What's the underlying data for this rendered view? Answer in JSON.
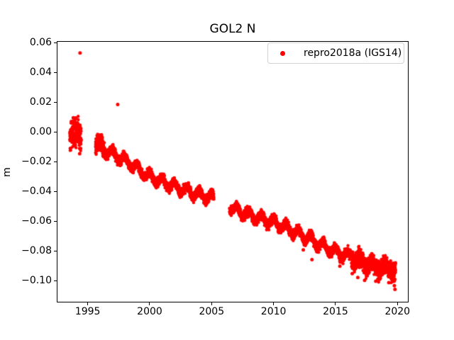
{
  "figure": {
    "title": "GOL2 N",
    "background": "#ffffff"
  },
  "legend": {
    "label": "repro2018a (IGS14)",
    "marker_color": "#ff0000",
    "position": "upper right"
  },
  "chart_data": {
    "type": "scatter",
    "title": "GOL2 N",
    "xlabel": "",
    "ylabel": "m",
    "xlim": [
      1992.5,
      2020.9
    ],
    "ylim": [
      -0.1143,
      0.061
    ],
    "grid": false,
    "xticks": [
      {
        "value": 1995,
        "label": "1995"
      },
      {
        "value": 2000,
        "label": "2000"
      },
      {
        "value": 2005,
        "label": "2005"
      },
      {
        "value": 2010,
        "label": "2010"
      },
      {
        "value": 2015,
        "label": "2015"
      },
      {
        "value": 2020,
        "label": "2020"
      }
    ],
    "yticks": [
      {
        "value": 0.06,
        "label": "0.06"
      },
      {
        "value": 0.04,
        "label": "0.04"
      },
      {
        "value": 0.02,
        "label": "0.02"
      },
      {
        "value": 0.0,
        "label": "0.00"
      },
      {
        "value": -0.02,
        "label": "−0.02"
      },
      {
        "value": -0.04,
        "label": "−0.04"
      },
      {
        "value": -0.06,
        "label": "−0.06"
      },
      {
        "value": -0.08,
        "label": "−0.08"
      },
      {
        "value": -0.1,
        "label": "−0.10"
      }
    ],
    "series": [
      {
        "name": "repro2018a (IGS14)",
        "color": "#ff0000",
        "marker": "dot",
        "marker_radius_px": 2.2,
        "sample_step_years": 0.004,
        "annual_amplitude_m": 0.0028,
        "annual_peak_phase": 0.0,
        "noise_sigma_m": 0.0015,
        "random_seed": 42,
        "segments": [
          {
            "name": "initial-cluster-1993-1994",
            "t_start": 1993.55,
            "t_end": 1994.48,
            "noise_sigma_m": 0.0045,
            "clip": [
              -0.0125,
              0.0105
            ],
            "trend_anchors": [
              [
                1993.55,
                -0.001
              ],
              [
                1994.48,
                -0.002
              ]
            ]
          },
          {
            "name": "band-1995-2005",
            "t_start": 1995.63,
            "t_end": 2005.18,
            "extra_noise_before": 1996.35,
            "extra_noise_sigma_m": 0.0028,
            "trend_anchors": [
              [
                1995.63,
                -0.008
              ],
              [
                1997,
                -0.0145
              ],
              [
                1998,
                -0.019
              ],
              [
                2000,
                -0.03
              ],
              [
                2002,
                -0.0365
              ],
              [
                2004,
                -0.042
              ],
              [
                2005.18,
                -0.0445
              ]
            ]
          },
          {
            "name": "band-2006-2019",
            "t_start": 2006.45,
            "t_end": 2019.85,
            "late_noise_after": 2016.3,
            "late_noise_sigma_m": 0.003,
            "trend_anchors": [
              [
                2006.45,
                -0.0505
              ],
              [
                2008,
                -0.0555
              ],
              [
                2010,
                -0.0605
              ],
              [
                2012,
                -0.068
              ],
              [
                2014,
                -0.0765
              ],
              [
                2015,
                -0.0805
              ],
              [
                2016,
                -0.083
              ],
              [
                2017,
                -0.0865
              ],
              [
                2018,
                -0.0895
              ],
              [
                2019,
                -0.0915
              ],
              [
                2019.85,
                -0.093
              ]
            ]
          }
        ],
        "outliers": [
          [
            1994.38,
            0.053
          ],
          [
            1997.42,
            0.0185
          ]
        ],
        "stray_points": [
          [
            1994.35,
            -0.0145
          ],
          [
            2012.4,
            -0.079
          ],
          [
            2013.1,
            -0.0855
          ],
          [
            2015.35,
            -0.09
          ],
          [
            2016.35,
            -0.095
          ],
          [
            2016.8,
            -0.0975
          ],
          [
            2016.9,
            -0.0785
          ],
          [
            2017.35,
            -0.0995
          ],
          [
            2018.25,
            -0.1
          ],
          [
            2019.3,
            -0.101
          ],
          [
            2019.72,
            -0.0995
          ],
          [
            2019.75,
            -0.103
          ],
          [
            2019.8,
            -0.1055
          ],
          [
            2019.78,
            -0.099
          ]
        ]
      }
    ]
  }
}
